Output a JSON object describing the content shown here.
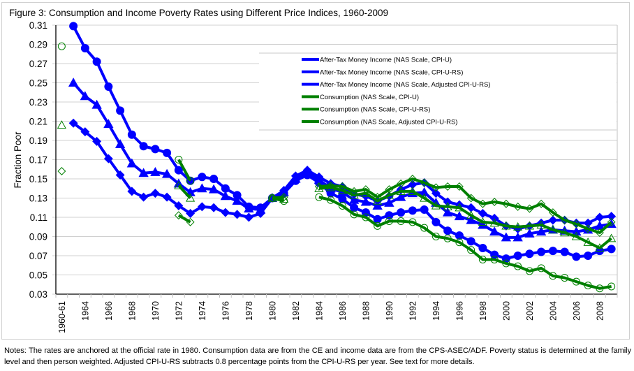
{
  "chart_data": {
    "type": "line",
    "title": "Figure 3: Consumption and Income Poverty Rates using Different Price Indices, 1960-2009",
    "xlabel": "",
    "ylabel": "Fraction Poor",
    "ylim": [
      0.03,
      0.31
    ],
    "yticks": [
      "0.31",
      "0.29",
      "0.27",
      "0.25",
      "0.23",
      "0.21",
      "0.19",
      "0.17",
      "0.15",
      "0.13",
      "0.11",
      "0.09",
      "0.07",
      "0.05",
      "0.03"
    ],
    "grid": true,
    "legend_position": "top-right",
    "categories": [
      "1960-61",
      "1963",
      "1964",
      "1965",
      "1966",
      "1967",
      "1968",
      "1969",
      "1970",
      "1971",
      "1972",
      "1973",
      "1974",
      "1975",
      "1976",
      "1977",
      "1978",
      "1979",
      "1980",
      "1981",
      "1982",
      "1983",
      "1984",
      "1985",
      "1986",
      "1987",
      "1988",
      "1989",
      "1990",
      "1991",
      "1992",
      "1993",
      "1994",
      "1995",
      "1996",
      "1997",
      "1998",
      "1999",
      "2000",
      "2001",
      "2002",
      "2003",
      "2004",
      "2005",
      "2006",
      "2007",
      "2008",
      "2009"
    ],
    "xtick_labels": [
      "1960-61",
      "1964",
      "1966",
      "1968",
      "1970",
      "1972",
      "1974",
      "1976",
      "1978",
      "1980",
      "1982",
      "1984",
      "1986",
      "1988",
      "1990",
      "1992",
      "1994",
      "1996",
      "1998",
      "2000",
      "2002",
      "2004",
      "2006",
      "2008"
    ],
    "series": [
      {
        "name": "After-Tax Money Income (NAS Scale, CPI-U)",
        "color": "#0000ff",
        "marker": "circle",
        "filled": true,
        "values": [
          null,
          0.309,
          0.286,
          0.272,
          0.246,
          0.221,
          0.196,
          0.184,
          0.181,
          0.177,
          0.159,
          0.148,
          0.152,
          0.15,
          0.14,
          0.133,
          0.121,
          0.12,
          0.13,
          0.135,
          0.148,
          0.154,
          0.146,
          0.135,
          0.129,
          0.12,
          0.115,
          0.108,
          0.112,
          0.115,
          0.117,
          0.118,
          0.105,
          0.096,
          0.091,
          0.085,
          0.078,
          0.071,
          0.067,
          0.07,
          0.072,
          0.074,
          0.075,
          0.074,
          0.069,
          0.07,
          0.075,
          0.077
        ]
      },
      {
        "name": "After-Tax Money Income (NAS Scale, CPI-U-RS)",
        "color": "#0000ff",
        "marker": "triangle",
        "filled": true,
        "values": [
          null,
          0.25,
          0.236,
          0.227,
          0.207,
          0.186,
          0.166,
          0.156,
          0.157,
          0.155,
          0.145,
          0.136,
          0.14,
          0.139,
          0.132,
          0.127,
          0.119,
          0.118,
          0.13,
          0.136,
          0.15,
          0.157,
          0.149,
          0.14,
          0.136,
          0.128,
          0.126,
          0.122,
          0.125,
          0.131,
          0.135,
          0.136,
          0.125,
          0.115,
          0.111,
          0.107,
          0.102,
          0.095,
          0.089,
          0.089,
          0.093,
          0.095,
          0.097,
          0.096,
          0.095,
          0.097,
          0.101,
          0.103
        ]
      },
      {
        "name": "After-Tax Money Income (NAS Scale, Adjusted CPI-U-RS)",
        "color": "#0000ff",
        "marker": "diamond",
        "filled": true,
        "values": [
          null,
          0.208,
          0.199,
          0.189,
          0.171,
          0.154,
          0.137,
          0.131,
          0.135,
          0.131,
          0.122,
          0.114,
          0.121,
          0.12,
          0.115,
          0.113,
          0.11,
          0.114,
          0.13,
          0.138,
          0.153,
          0.159,
          0.152,
          0.145,
          0.142,
          0.134,
          0.132,
          0.127,
          0.132,
          0.139,
          0.144,
          0.146,
          0.135,
          0.126,
          0.123,
          0.12,
          0.114,
          0.109,
          0.101,
          0.098,
          0.101,
          0.104,
          0.107,
          0.107,
          0.104,
          0.104,
          0.11,
          0.111
        ]
      },
      {
        "name": "Consumption (NAS Scale, CPI-U)",
        "color": "#008000",
        "marker": "circle",
        "filled": false,
        "values": [
          0.288,
          null,
          null,
          null,
          null,
          null,
          null,
          null,
          null,
          null,
          0.17,
          0.148,
          null,
          null,
          null,
          null,
          null,
          null,
          0.13,
          0.127,
          null,
          null,
          0.131,
          0.128,
          0.122,
          0.113,
          0.11,
          0.101,
          0.106,
          0.106,
          0.105,
          0.099,
          0.09,
          0.088,
          0.084,
          0.076,
          0.066,
          0.066,
          0.062,
          0.059,
          0.054,
          0.057,
          0.049,
          0.047,
          0.043,
          0.039,
          0.036,
          0.038
        ]
      },
      {
        "name": "Consumption (NAS Scale, CPI-U-RS)",
        "color": "#008000",
        "marker": "triangle",
        "filled": false,
        "values": [
          0.206,
          null,
          null,
          null,
          null,
          null,
          null,
          null,
          null,
          null,
          0.143,
          0.13,
          null,
          null,
          null,
          null,
          null,
          null,
          0.13,
          0.129,
          null,
          null,
          0.14,
          0.141,
          0.138,
          0.133,
          0.135,
          0.127,
          0.133,
          0.137,
          0.137,
          0.13,
          0.122,
          0.121,
          0.12,
          0.112,
          0.105,
          0.104,
          0.101,
          0.1,
          0.101,
          0.102,
          0.097,
          0.094,
          0.09,
          0.084,
          0.078,
          0.088
        ]
      },
      {
        "name": "Consumption (NAS Scale, Adjusted CPI-U-RS)",
        "color": "#008000",
        "marker": "diamond",
        "filled": false,
        "values": [
          0.158,
          null,
          null,
          null,
          null,
          null,
          null,
          null,
          null,
          null,
          0.112,
          0.105,
          null,
          null,
          null,
          null,
          null,
          null,
          0.13,
          0.131,
          null,
          null,
          0.142,
          0.143,
          0.142,
          0.137,
          0.139,
          0.131,
          0.139,
          0.145,
          0.15,
          0.146,
          0.141,
          0.142,
          0.142,
          0.13,
          0.124,
          0.126,
          0.124,
          0.121,
          0.119,
          0.124,
          0.115,
          0.107,
          0.103,
          0.098,
          0.094,
          0.105
        ]
      }
    ]
  },
  "notes": "Notes: The rates are anchored at the official rate in 1980.  Consumption data are from the CE and income data are from the CPS-ASEC/ADF.  Poverty status is determined at the family level and then person weighted.  Adjusted CPI-U-RS subtracts 0.8 percentage points from the CPI-U-RS per year.  See text for more details."
}
